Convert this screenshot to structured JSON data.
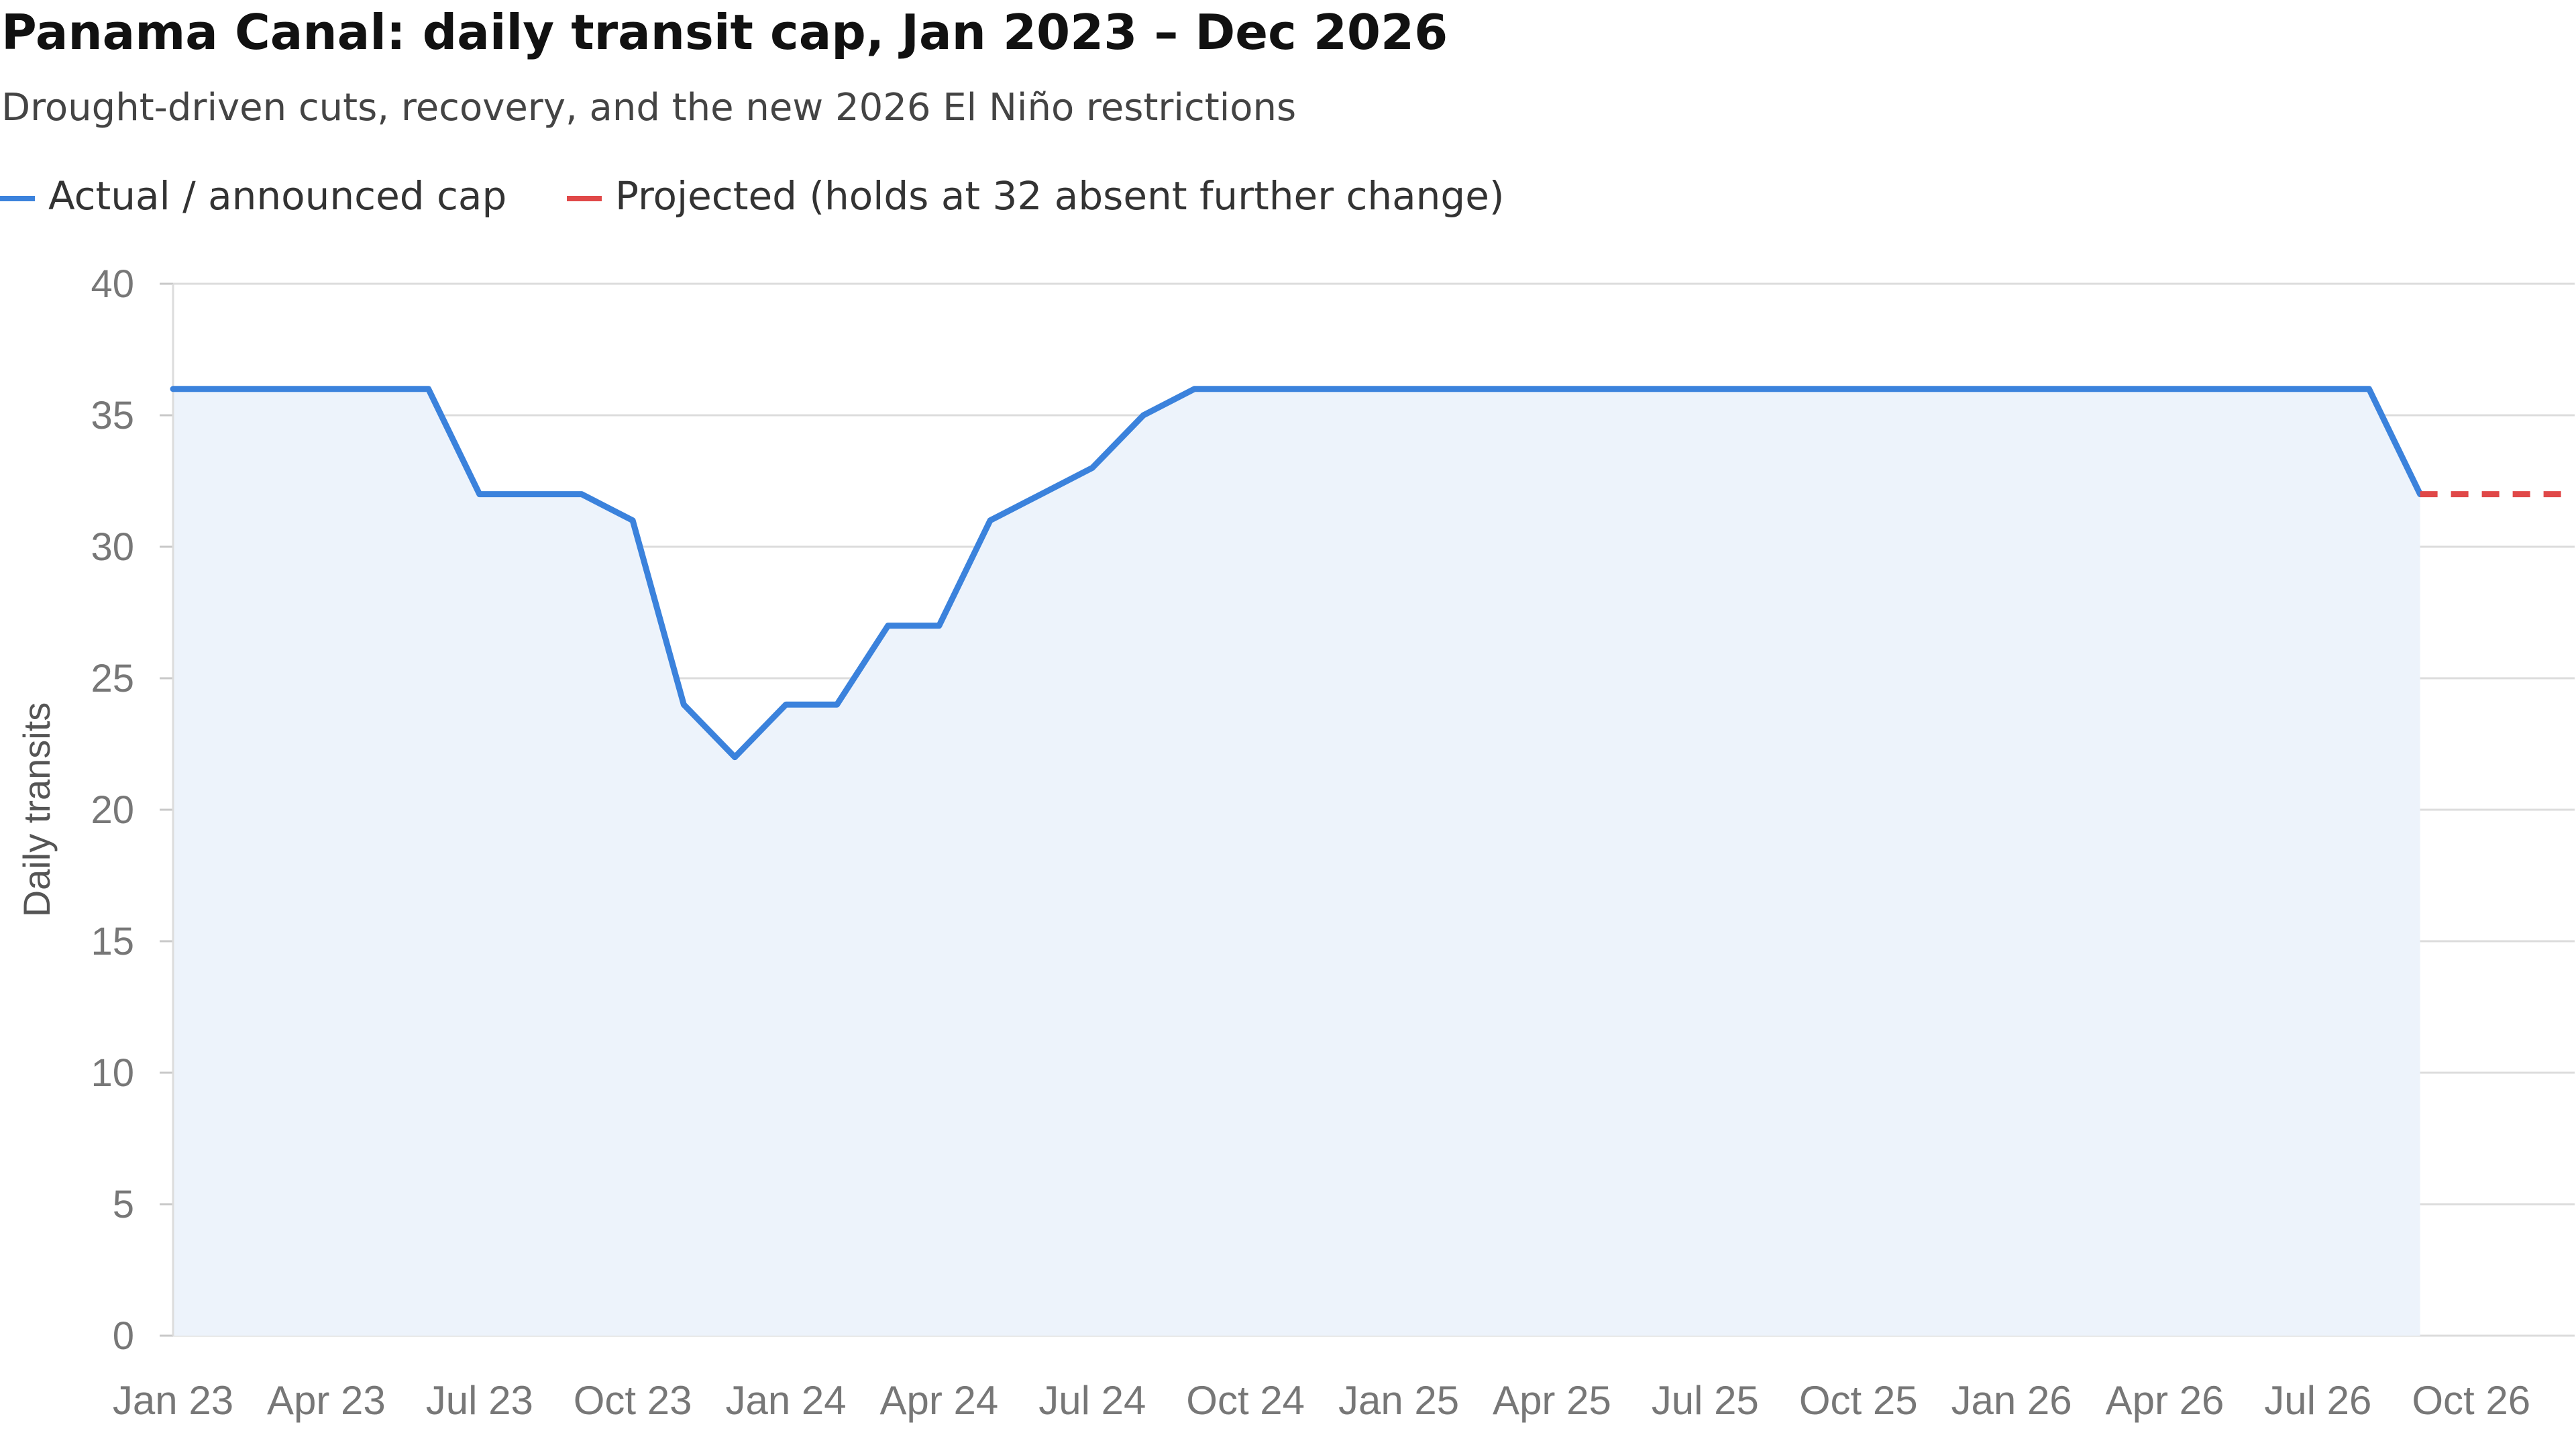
{
  "chart_data": {
    "type": "line",
    "title": "Panama Canal: daily transit cap, Jan 2023 – Dec 2026",
    "subtitle": "Drought-driven cuts, recovery, and the new 2026 El Niño restrictions",
    "ylabel": "Daily transits",
    "xlabel": "",
    "ylim": [
      0,
      40
    ],
    "yticks": [
      0,
      5,
      10,
      15,
      20,
      25,
      30,
      35,
      40
    ],
    "xticks": [
      "Jan 23",
      "Apr 23",
      "Jul 23",
      "Oct 23",
      "Jan 24",
      "Apr 24",
      "Jul 24",
      "Oct 24",
      "Jan 25",
      "Apr 25",
      "Jul 25",
      "Oct 25",
      "Jan 26",
      "Apr 26",
      "Jul 26",
      "Oct 26"
    ],
    "grid": true,
    "legend_position": "top-left",
    "series": [
      {
        "name": "Actual / announced cap",
        "color": "#3b82dc",
        "style": "solid",
        "area_fill": "#edf3fb",
        "points": [
          {
            "x": "2023-01",
            "y": 36
          },
          {
            "x": "2023-02",
            "y": 36
          },
          {
            "x": "2023-03",
            "y": 36
          },
          {
            "x": "2023-04",
            "y": 36
          },
          {
            "x": "2023-05",
            "y": 36
          },
          {
            "x": "2023-06",
            "y": 36
          },
          {
            "x": "2023-07",
            "y": 32
          },
          {
            "x": "2023-08",
            "y": 32
          },
          {
            "x": "2023-09",
            "y": 32
          },
          {
            "x": "2023-10",
            "y": 31
          },
          {
            "x": "2023-11",
            "y": 24
          },
          {
            "x": "2023-12",
            "y": 22
          },
          {
            "x": "2024-01",
            "y": 24
          },
          {
            "x": "2024-02",
            "y": 24
          },
          {
            "x": "2024-03",
            "y": 27
          },
          {
            "x": "2024-04",
            "y": 27
          },
          {
            "x": "2024-05",
            "y": 31
          },
          {
            "x": "2024-06",
            "y": 32
          },
          {
            "x": "2024-07",
            "y": 33
          },
          {
            "x": "2024-08",
            "y": 35
          },
          {
            "x": "2024-09",
            "y": 36
          },
          {
            "x": "2024-10",
            "y": 36
          },
          {
            "x": "2024-11",
            "y": 36
          },
          {
            "x": "2024-12",
            "y": 36
          },
          {
            "x": "2025-01",
            "y": 36
          },
          {
            "x": "2025-02",
            "y": 36
          },
          {
            "x": "2025-03",
            "y": 36
          },
          {
            "x": "2025-04",
            "y": 36
          },
          {
            "x": "2025-05",
            "y": 36
          },
          {
            "x": "2025-06",
            "y": 36
          },
          {
            "x": "2025-07",
            "y": 36
          },
          {
            "x": "2025-08",
            "y": 36
          },
          {
            "x": "2025-09",
            "y": 36
          },
          {
            "x": "2025-10",
            "y": 36
          },
          {
            "x": "2025-11",
            "y": 36
          },
          {
            "x": "2025-12",
            "y": 36
          },
          {
            "x": "2026-01",
            "y": 36
          },
          {
            "x": "2026-02",
            "y": 36
          },
          {
            "x": "2026-03",
            "y": 36
          },
          {
            "x": "2026-04",
            "y": 36
          },
          {
            "x": "2026-05",
            "y": 36
          },
          {
            "x": "2026-06",
            "y": 36
          },
          {
            "x": "2026-07",
            "y": 36
          },
          {
            "x": "2026-08",
            "y": 36
          },
          {
            "x": "2026-09",
            "y": 32
          }
        ]
      },
      {
        "name": "Projected (holds at 32 absent further change)",
        "color": "#e04848",
        "style": "dashed",
        "points": [
          {
            "x": "2026-09",
            "y": 32
          },
          {
            "x": "2026-10",
            "y": 32
          },
          {
            "x": "2026-11",
            "y": 32
          },
          {
            "x": "2026-12",
            "y": 32
          }
        ]
      }
    ]
  }
}
